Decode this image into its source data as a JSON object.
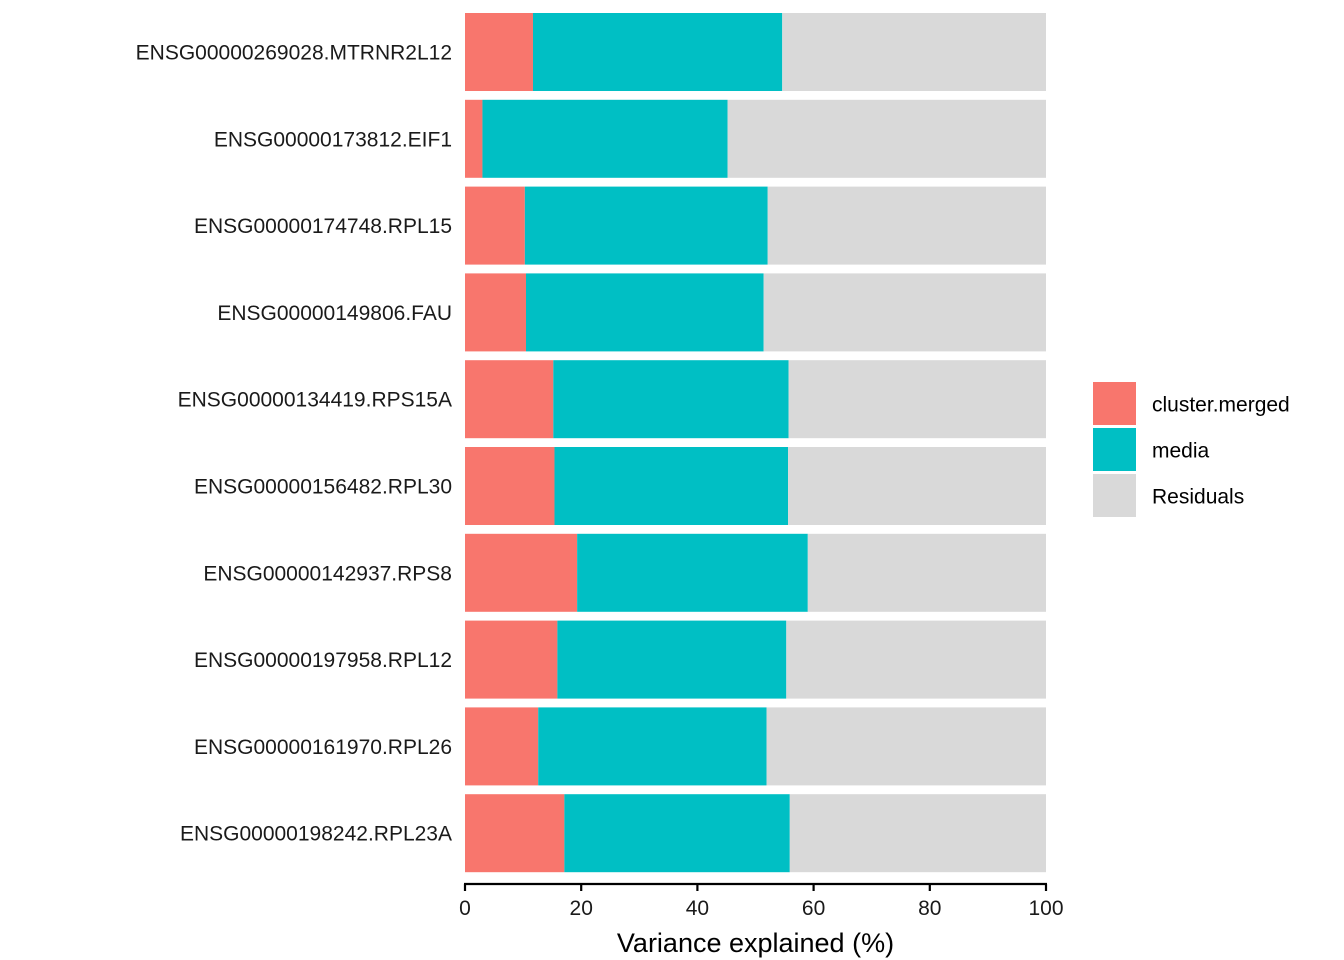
{
  "chart_data": {
    "type": "bar",
    "orientation": "horizontal",
    "stacked": true,
    "categories": [
      "ENSG00000269028.MTRNR2L12",
      "ENSG00000173812.EIF1",
      "ENSG00000174748.RPL15",
      "ENSG00000149806.FAU",
      "ENSG00000134419.RPS15A",
      "ENSG00000156482.RPL30",
      "ENSG00000142937.RPS8",
      "ENSG00000197958.RPL12",
      "ENSG00000161970.RPL26",
      "ENSG00000198242.RPL23A"
    ],
    "series": [
      {
        "name": "cluster.merged",
        "color": "#F8766D",
        "values": [
          11.7,
          3.0,
          10.3,
          10.5,
          15.2,
          15.4,
          19.3,
          15.9,
          12.6,
          17.1
        ]
      },
      {
        "name": "media",
        "color": "#00BFC4",
        "values": [
          42.9,
          42.2,
          41.8,
          40.9,
          40.5,
          40.2,
          39.7,
          39.4,
          39.3,
          38.8
        ]
      },
      {
        "name": "Residuals",
        "color": "#D9D9D9",
        "values": [
          45.4,
          54.8,
          47.9,
          48.6,
          44.3,
          44.4,
          41.0,
          44.7,
          48.1,
          44.1
        ]
      }
    ],
    "xlabel": "Variance explained (%)",
    "ylabel": "",
    "xlim": [
      0,
      100
    ],
    "xticks": [
      "0",
      "20",
      "40",
      "60",
      "80",
      "100"
    ],
    "grid": false,
    "legend_position": "right"
  }
}
